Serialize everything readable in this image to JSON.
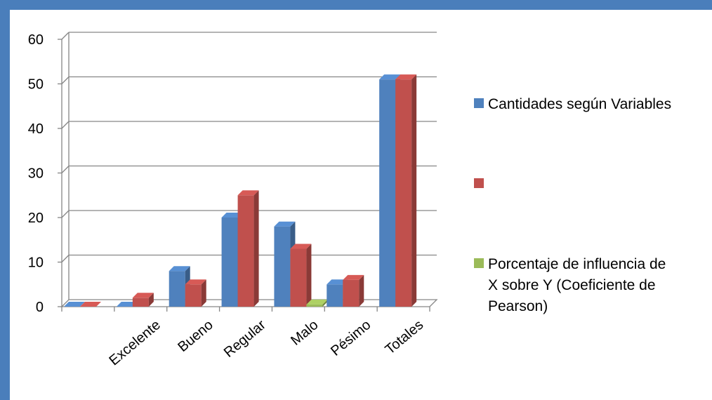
{
  "colors": {
    "frame": "#4a7ebb",
    "grid": "#868686"
  },
  "chart_data": {
    "type": "bar",
    "title": "",
    "xlabel": "",
    "ylabel": "",
    "ylim": [
      0,
      60
    ],
    "yticks": [
      0,
      10,
      20,
      30,
      40,
      50,
      60
    ],
    "grid": true,
    "legend_position": "right",
    "categories": [
      "",
      "Excelente",
      "Bueno",
      "Regular",
      "Malo",
      "Pésimo",
      "Totales"
    ],
    "series": [
      {
        "name": "Cantidades según Variables",
        "color": "#4f81bd",
        "values": [
          0,
          0,
          8,
          20,
          18,
          5,
          51
        ]
      },
      {
        "name": "",
        "color": "#c0504d",
        "values": [
          0,
          2,
          5,
          25,
          13,
          6,
          51
        ]
      },
      {
        "name": "Porcentaje de influencia de X sobre Y (Coeficiente de Pearson)",
        "legend_lines": [
          "Porcentaje de influencia de",
          "X sobre Y (Coeficiente de",
          "Pearson)"
        ],
        "color": "#9bbb59",
        "values": [
          0,
          0,
          0,
          0,
          0.5,
          0,
          0
        ]
      }
    ]
  }
}
